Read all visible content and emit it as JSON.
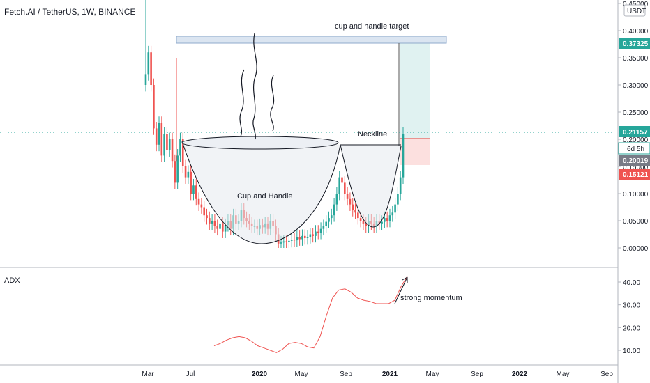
{
  "header": {
    "title": "Fetch.AI / TetherUS, 1W, BINANCE"
  },
  "price_axis": {
    "currency_badge": "USDT",
    "ticks": [
      "0.45000",
      "0.40000",
      "0.35000",
      "0.30000",
      "0.25000",
      "0.20000",
      "0.15000",
      "0.10000",
      "0.05000",
      "0.00000"
    ],
    "tag_target": {
      "value": "0.37325",
      "color": "#26a69a"
    },
    "tag_current": {
      "value": "0.21157",
      "color": "#26a69a"
    },
    "tag_countdown": {
      "value": "6d 5h"
    },
    "tag_entry": {
      "value": "0.20019",
      "color": "#787b86"
    },
    "tag_stop": {
      "value": "0.15121",
      "color": "#ef5350"
    }
  },
  "adx_axis": {
    "ticks": [
      "40.00",
      "30.00",
      "20.00",
      "10.00"
    ]
  },
  "time_axis": {
    "labels": [
      "Mar",
      "Jul",
      "2020",
      "May",
      "Sep",
      "2021",
      "May",
      "Sep",
      "2022",
      "May",
      "Sep"
    ]
  },
  "annotations": {
    "target_label": "cup and handle target",
    "neckline_label": "Neckline",
    "pattern_label": "Cup and Handle",
    "momentum_label": "strong momentum"
  },
  "chart_data": [
    {
      "type": "candlestick",
      "title": "Fetch.AI / TetherUS, 1W, BINANCE",
      "ylim": [
        -0.03,
        0.46
      ],
      "x_labels": [
        "Mar",
        "Jul",
        "2020",
        "May",
        "Sep",
        "2021",
        "May",
        "Sep",
        "2022",
        "May",
        "Sep"
      ],
      "close": [
        0.32,
        0.36,
        0.3,
        0.22,
        0.19,
        0.23,
        0.17,
        0.21,
        0.18,
        0.2,
        0.16,
        0.12,
        0.17,
        0.2,
        0.15,
        0.13,
        0.14,
        0.1,
        0.115,
        0.09,
        0.08,
        0.075,
        0.06,
        0.055,
        0.045,
        0.05,
        0.04,
        0.035,
        0.045,
        0.03,
        0.042,
        0.05,
        0.035,
        0.06,
        0.045,
        0.05,
        0.07,
        0.055,
        0.05,
        0.045,
        0.04,
        0.04,
        0.035,
        0.042,
        0.038,
        0.045,
        0.035,
        0.05,
        0.04,
        0.025,
        0.008,
        0.01,
        0.012,
        0.011,
        0.013,
        0.015,
        0.014,
        0.02,
        0.016,
        0.022,
        0.018,
        0.02,
        0.025,
        0.022,
        0.03,
        0.028,
        0.035,
        0.04,
        0.048,
        0.055,
        0.06,
        0.08,
        0.1,
        0.13,
        0.12,
        0.1,
        0.09,
        0.08,
        0.07,
        0.065,
        0.055,
        0.05,
        0.045,
        0.04,
        0.05,
        0.045,
        0.04,
        0.05,
        0.045,
        0.048,
        0.055,
        0.05,
        0.06,
        0.065,
        0.08,
        0.1,
        0.13,
        0.21
      ],
      "annotations": [
        "cup and handle target",
        "Neckline",
        "Cup and Handle"
      ],
      "target": 0.37325,
      "current": 0.21157,
      "entry": 0.20019,
      "stop": 0.15121
    },
    {
      "type": "line",
      "title": "ADX",
      "ylim": [
        5,
        43
      ],
      "values": [
        12,
        13,
        14.5,
        15.5,
        16,
        15.5,
        14,
        12,
        11,
        10,
        9,
        10.5,
        13,
        13.5,
        13,
        11.5,
        11,
        16,
        25,
        33,
        36.5,
        37,
        35.5,
        33,
        32,
        31.5,
        30.5,
        30.5,
        30.5,
        32,
        38,
        42.5
      ],
      "annotations": [
        "strong momentum"
      ]
    }
  ]
}
